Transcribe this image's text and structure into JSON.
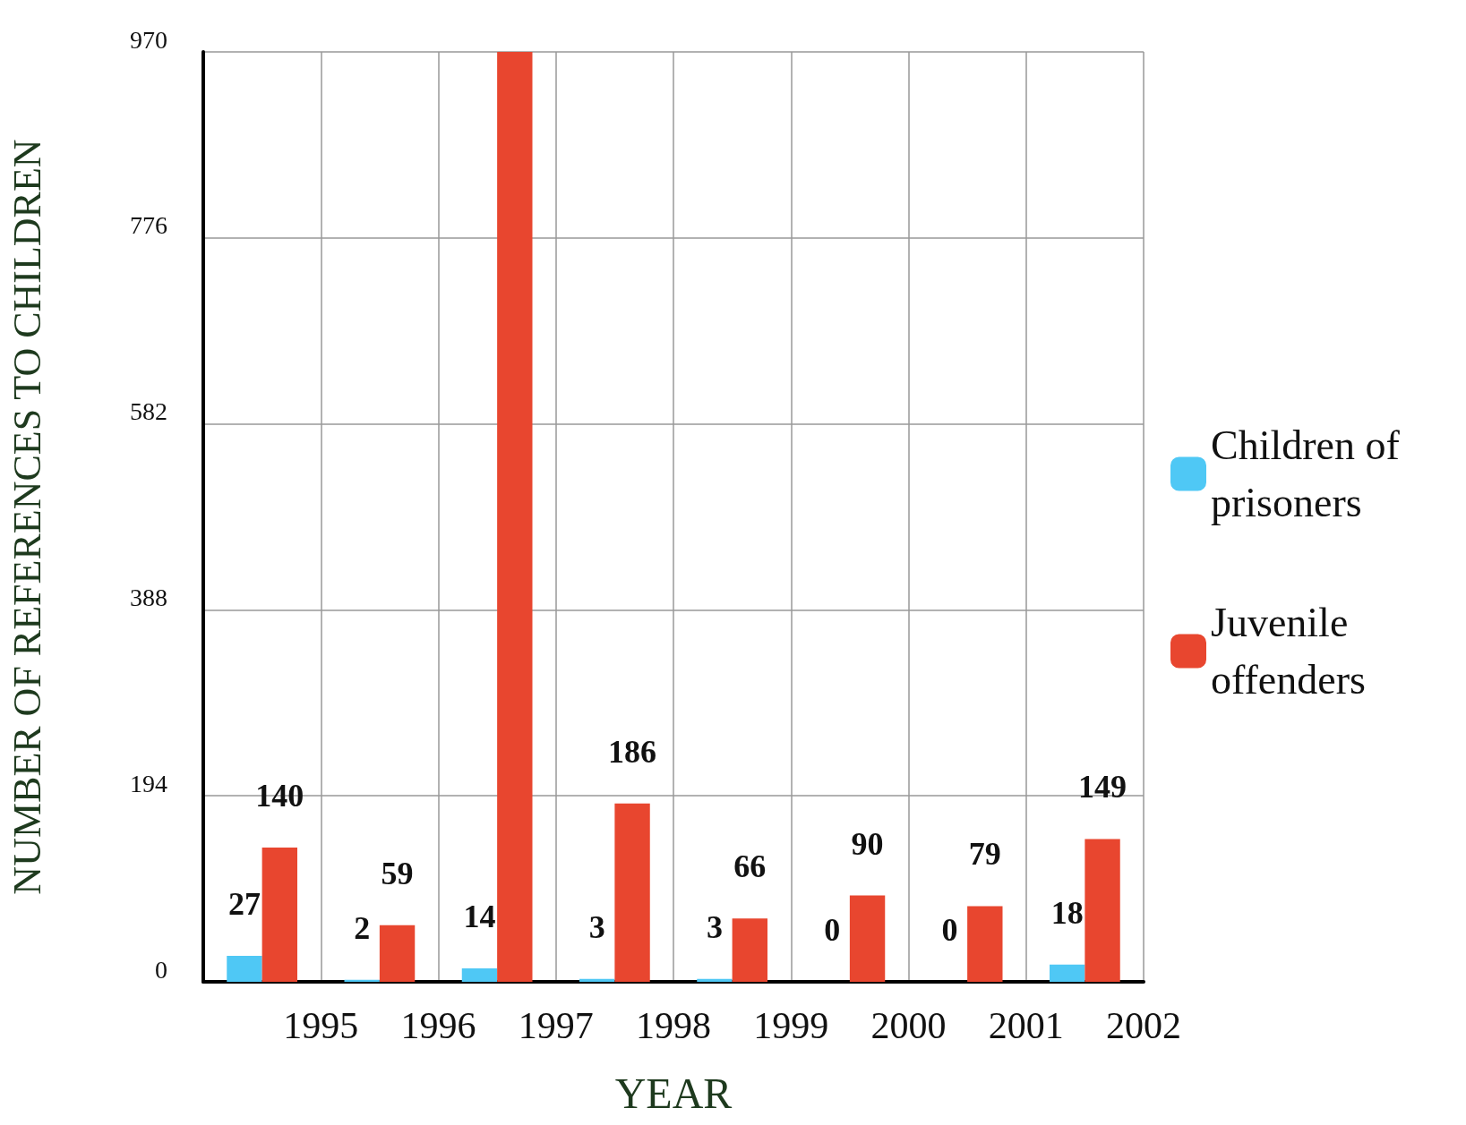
{
  "chart_data": {
    "type": "bar",
    "xlabel": "YEAR",
    "ylabel": "NUMBER OF REFERENCES TO CHILDREN",
    "x": [
      1994.5,
      1995.5,
      1996.5,
      1997.5,
      1998.5,
      1999.5,
      2000.5,
      2001.5
    ],
    "series": [
      {
        "name": "Children of prisoners",
        "color": "#4fc8f5",
        "values": [
          27,
          2,
          14,
          3,
          3,
          0,
          0,
          18
        ],
        "value_labels": [
          "27",
          "2",
          "14",
          "3",
          "3",
          "0",
          "0",
          "18"
        ]
      },
      {
        "name": "Juvenile offenders",
        "color": "#e8462f",
        "values": [
          140,
          59,
          970,
          186,
          66,
          90,
          79,
          149
        ],
        "value_labels": [
          "140",
          "59",
          null,
          "186",
          "66",
          "90",
          "79",
          "149"
        ]
      }
    ],
    "xlim": [
      1994,
      2002
    ],
    "xticks": [
      1995,
      1996,
      1997,
      1998,
      1999,
      2000,
      2001,
      2002
    ],
    "ylim": [
      0,
      970
    ],
    "yticks": [
      0,
      194,
      388,
      582,
      776,
      970
    ],
    "grid": true,
    "legend": "right"
  }
}
